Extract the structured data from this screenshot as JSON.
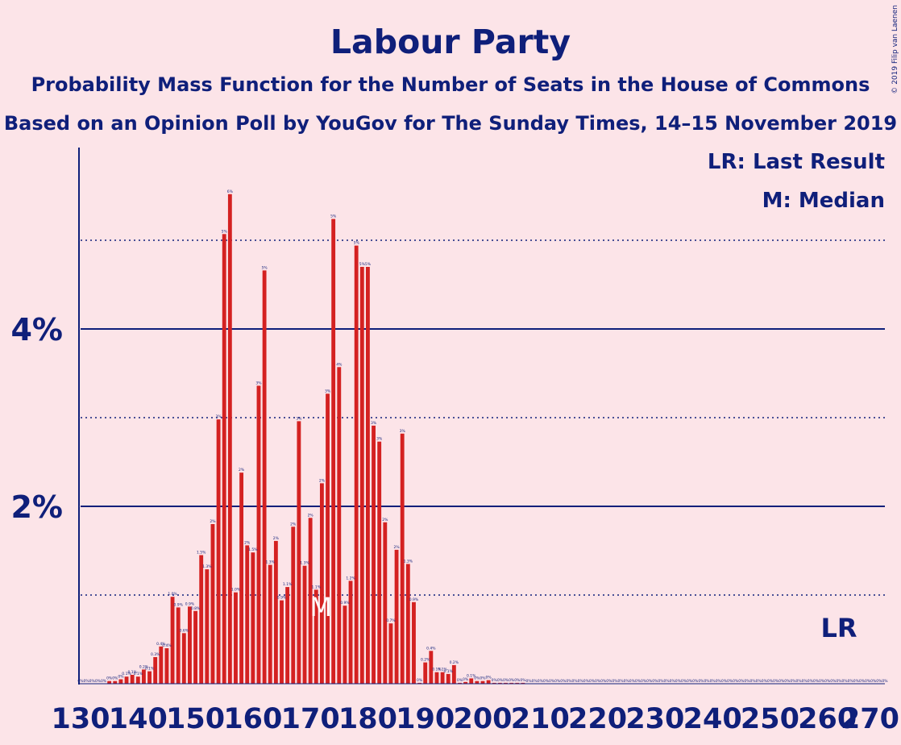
{
  "copyright": "© 2019 Filip van Laenen",
  "chart_data": {
    "type": "bar",
    "title": "Labour Party",
    "subtitle": "Probability Mass Function for the Number of Seats in the House of Commons",
    "subtitle2": "Based on an Opinion Poll by YouGov for The Sunday Times, 14–15 November 2019",
    "legend": {
      "last_result": "LR: Last Result",
      "median": "M: Median"
    },
    "markers": {
      "median_label": "M",
      "median_x": 170,
      "last_result_label": "LR",
      "last_result_x": 262
    },
    "xlim": [
      130,
      270
    ],
    "ylim": [
      0,
      6
    ],
    "x_ticks": [
      130,
      140,
      150,
      160,
      170,
      180,
      190,
      200,
      210,
      220,
      230,
      240,
      250,
      260,
      270
    ],
    "x_tick_labels": [
      "130",
      "140",
      "150",
      "160",
      "170",
      "180",
      "190",
      "200",
      "210",
      "220",
      "230",
      "240",
      "250",
      "260",
      "270"
    ],
    "y_ticks_major": [
      2,
      4
    ],
    "y_tick_labels": [
      "2%",
      "4%"
    ],
    "y_ticks_minor": [
      1,
      3,
      5
    ],
    "bar_color": "#D42121",
    "text_color": "#0F1F7A",
    "background": "#FCE4E8",
    "x": [
      130,
      131,
      132,
      133,
      134,
      135,
      136,
      137,
      138,
      139,
      140,
      141,
      142,
      143,
      144,
      145,
      146,
      147,
      148,
      149,
      150,
      151,
      152,
      153,
      154,
      155,
      156,
      157,
      158,
      159,
      160,
      161,
      162,
      163,
      164,
      165,
      166,
      167,
      168,
      169,
      170,
      171,
      172,
      173,
      174,
      175,
      176,
      177,
      178,
      179,
      180,
      181,
      182,
      183,
      184,
      185,
      186,
      187,
      188,
      189,
      190,
      191,
      192,
      193,
      194,
      195,
      196,
      197,
      198,
      199,
      200,
      201,
      202,
      203,
      204,
      205,
      206,
      207,
      208,
      209,
      210,
      211,
      212,
      213,
      214,
      215,
      216,
      217,
      218,
      219,
      220,
      221,
      222,
      223,
      224,
      225,
      226,
      227,
      228,
      229,
      230,
      231,
      232,
      233,
      234,
      235,
      236,
      237,
      238,
      239,
      240,
      241,
      242,
      243,
      244,
      245,
      246,
      247,
      248,
      249,
      250,
      251,
      252,
      253,
      254,
      255,
      256,
      257,
      258,
      259,
      260,
      261,
      262,
      263,
      264,
      265,
      266,
      267,
      268,
      269,
      270
    ],
    "values": [
      0,
      0,
      0,
      0,
      0,
      0.03,
      0.03,
      0.05,
      0.08,
      0.1,
      0.08,
      0.16,
      0.14,
      0.3,
      0.42,
      0.4,
      0.98,
      0.86,
      0.57,
      0.87,
      0.82,
      1.45,
      1.29,
      1.8,
      2.98,
      5.07,
      5.52,
      1.03,
      2.38,
      1.56,
      1.48,
      3.36,
      4.66,
      1.34,
      1.61,
      0.94,
      1.09,
      1.77,
      2.96,
      1.33,
      1.87,
      1.06,
      2.26,
      3.27,
      5.24,
      3.57,
      0.88,
      1.16,
      4.94,
      4.7,
      4.7,
      2.91,
      2.73,
      1.82,
      0.68,
      1.51,
      2.82,
      1.35,
      0.92,
      0.01,
      0.24,
      0.37,
      0.13,
      0.13,
      0.11,
      0.21,
      0.01,
      0.02,
      0.06,
      0.03,
      0.03,
      0.04,
      0.01,
      0.01,
      0.01,
      0.01,
      0.01,
      0.01,
      0,
      0,
      0,
      0,
      0,
      0,
      0,
      0,
      0,
      0,
      0,
      0,
      0,
      0,
      0,
      0,
      0,
      0,
      0,
      0,
      0,
      0,
      0,
      0,
      0,
      0,
      0,
      0,
      0,
      0,
      0,
      0,
      0,
      0,
      0,
      0,
      0,
      0,
      0,
      0,
      0,
      0,
      0,
      0,
      0,
      0,
      0,
      0,
      0,
      0,
      0,
      0,
      0,
      0,
      0,
      0,
      0,
      0,
      0,
      0,
      0,
      0,
      0
    ],
    "data_labels": [
      "0%",
      "0%",
      "0%",
      "0%",
      "0%",
      "0%",
      "0%",
      "0%",
      "0.1%",
      "0.1%",
      "0.1%",
      "0.2%",
      "0.1%",
      "0.3%",
      "0.4%",
      "0.4%",
      "1.0%",
      "0.9%",
      "0.6%",
      "0.9%",
      "0.8%",
      "1.5%",
      "1.3%",
      "2%",
      "3%",
      "5%",
      "6%",
      "1.0%",
      "2%",
      "2%",
      "1.5%",
      "3%",
      "5%",
      "1.3%",
      "2%",
      "0.9%",
      "1.1%",
      "2%",
      "3%",
      "1.3%",
      "2%",
      "1.1%",
      "2%",
      "3%",
      "5%",
      "4%",
      "0.9%",
      "1.2%",
      "5%",
      "5%",
      "5%",
      "3%",
      "3%",
      "2%",
      "0.7%",
      "2%",
      "3%",
      "1.3%",
      "0.9%",
      "0%",
      "0.2%",
      "0.4%",
      "0.1%",
      "0.1%",
      "0.1%",
      "0.2%",
      "0%",
      "0%",
      "0.1%",
      "0%",
      "0%",
      "0%",
      "0%",
      "0%",
      "0%",
      "0%",
      "0%",
      "0%",
      "0%",
      "0%",
      "0%",
      "0%",
      "0%",
      "0%",
      "0%",
      "0%",
      "0%",
      "0%",
      "0%",
      "0%",
      "0%",
      "0%",
      "0%",
      "0%",
      "0%",
      "0%",
      "0%",
      "0%",
      "0%",
      "0%",
      "0%",
      "0%",
      "0%",
      "0%",
      "0%",
      "0%",
      "0%",
      "0%",
      "0%",
      "0%",
      "0%",
      "0%",
      "0%",
      "0%",
      "0%",
      "0%",
      "0%",
      "0%",
      "0%",
      "0%",
      "0%",
      "0%",
      "0%",
      "0%",
      "0%",
      "0%",
      "0%",
      "0%",
      "0%",
      "0%",
      "0%",
      "0%",
      "0%",
      "0%",
      "0%",
      "0%",
      "0%",
      "0%",
      "0%",
      "0%",
      "0%"
    ]
  }
}
